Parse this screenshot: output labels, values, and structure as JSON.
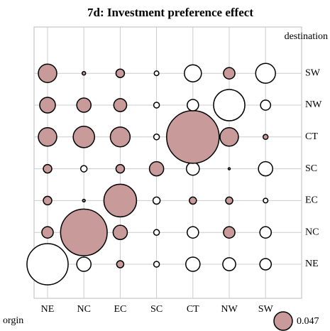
{
  "chart_data": {
    "type": "bubble",
    "title": "7d: Investment preference effect",
    "x_label": "orgin",
    "y_label": "destination",
    "x_categories": [
      "NE",
      "NC",
      "EC",
      "SC",
      "CT",
      "NW",
      "SW"
    ],
    "y_categories": [
      "NE",
      "NC",
      "EC",
      "SC",
      "CT",
      "NW",
      "SW"
    ],
    "values": [
      [
        -0.234,
        -0.028,
        0.007,
        -0.0045,
        -0.028,
        -0.023,
        -0.018
      ],
      [
        0.018,
        0.3,
        0.028,
        -0.0045,
        -0.018,
        0.018,
        -0.018
      ],
      [
        0.01,
        0.001,
        0.147,
        -0.007,
        0.007,
        0.007,
        -0.003
      ],
      [
        0.01,
        -0.0056,
        0.01,
        0.028,
        -0.023,
        0.0006,
        -0.028
      ],
      [
        0.047,
        0.063,
        0.054,
        -0.0045,
        0.381,
        0.047,
        0.0034
      ],
      [
        0.034,
        0.028,
        0.023,
        -0.0045,
        -0.018,
        -0.135,
        -0.014
      ],
      [
        0.047,
        0.0017,
        0.01,
        -0.003,
        -0.04,
        0.018,
        -0.054
      ]
    ],
    "positive_color": "#c99a9a",
    "negative_color": "#ffffff",
    "size_legend": 0.047,
    "grid": true
  }
}
